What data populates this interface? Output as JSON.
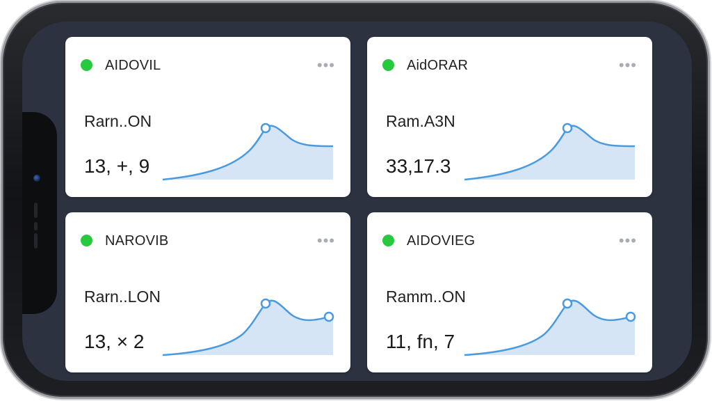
{
  "colors": {
    "status": "#27c93f",
    "line": "#4a9ae0",
    "fill": "#c7dcf3",
    "more_icon": "#a9adb3"
  },
  "icons": {
    "status": "status-dot-icon",
    "menu": "more-horizontal-icon",
    "point": "peak-marker-icon"
  },
  "cards": [
    {
      "title": "AIDOVIL",
      "label": "Rarn..ON",
      "value": "13, +, 9",
      "more": "•••",
      "marker_at_end": false
    },
    {
      "title": "AidORAR",
      "label": "Ram.A3N",
      "value": "33,17.3",
      "more": "•••",
      "marker_at_end": false
    },
    {
      "title": "NAROVIB",
      "label": "Rarn..LON",
      "value": "13, × 2",
      "more": "•••",
      "marker_at_end": true
    },
    {
      "title": "AIDOVIEG",
      "label": "Ramm..ON",
      "value": "11, fn, 7",
      "more": "•••",
      "marker_at_end": true
    }
  ]
}
